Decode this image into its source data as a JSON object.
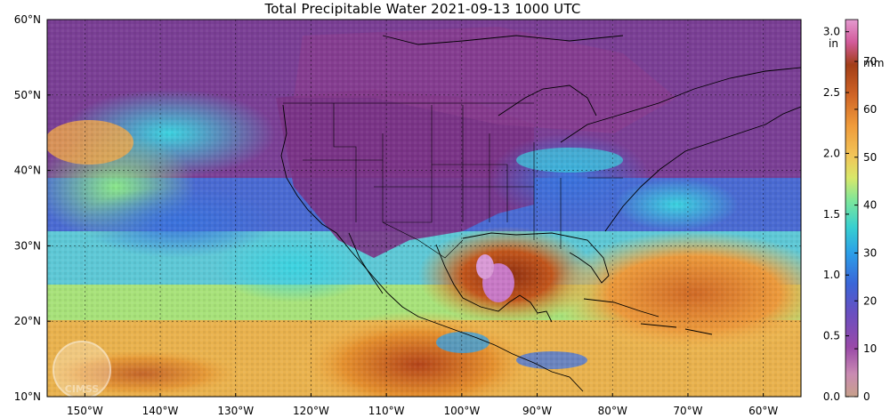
{
  "title": "Total Precipitable Water  2021-09-13 1000 UTC",
  "map": {
    "lat_labels": [
      "60°N",
      "50°N",
      "40°N",
      "30°N",
      "20°N",
      "10°N"
    ],
    "lat_values": [
      60,
      50,
      40,
      30,
      20,
      10
    ],
    "lon_labels": [
      "150°W",
      "140°W",
      "130°W",
      "120°W",
      "110°W",
      "100°W",
      "90°W",
      "80°W",
      "70°W",
      "60°W"
    ],
    "lon_values": [
      -150,
      -140,
      -130,
      -120,
      -110,
      -100,
      -90,
      -80,
      -70,
      -60
    ],
    "lon_range": [
      -155,
      -55
    ],
    "lat_range": [
      10,
      60
    ],
    "logo_text": "CIMSS"
  },
  "colorbar": {
    "in_unit": "in",
    "mm_unit": "mm",
    "in_ticks": [
      "3.0",
      "2.5",
      "2.0",
      "1.5",
      "1.0",
      "0.5",
      "0.0"
    ],
    "in_values": [
      3.0,
      2.5,
      2.0,
      1.5,
      1.0,
      0.5,
      0.0
    ],
    "mm_ticks": [
      "70",
      "60",
      "50",
      "40",
      "30",
      "20",
      "10",
      "0"
    ],
    "mm_values": [
      70,
      60,
      50,
      40,
      30,
      20,
      10,
      0
    ],
    "range_in": [
      0,
      3.1
    ],
    "colors": [
      "#c98ab2",
      "#c94fa8",
      "#8a3a8c",
      "#6a4fc0",
      "#3a66d8",
      "#2b8ee8",
      "#35c4d8",
      "#5fe0a8",
      "#b8e86a",
      "#f2d060",
      "#f0a640",
      "#d67028",
      "#b04a1e",
      "#8a2e12",
      "#5a1a0c"
    ]
  }
}
